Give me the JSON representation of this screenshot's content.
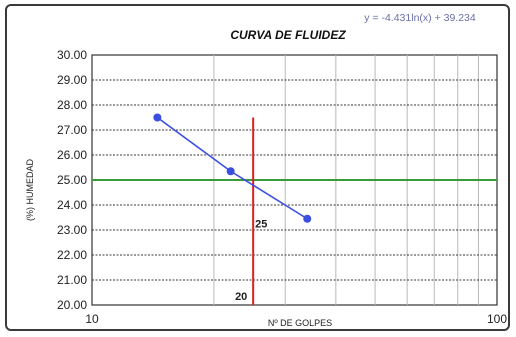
{
  "chart_data": {
    "type": "scatter",
    "title": "CURVA DE FLUIDEZ",
    "equation": "y = -4.431ln(x) + 39.234",
    "xlabel": "Nº DE GOLPES",
    "ylabel": "(%) HUMEDAD",
    "x_scale": "log",
    "xlim": [
      10,
      100
    ],
    "ylim": [
      20,
      30
    ],
    "x_tick_labels": [
      "10",
      "100"
    ],
    "x_minor_ticks": [
      20,
      30,
      40,
      50,
      60,
      70,
      80,
      90
    ],
    "y_ticks": [
      20.0,
      21.0,
      22.0,
      23.0,
      24.0,
      25.0,
      26.0,
      27.0,
      28.0,
      29.0,
      30.0
    ],
    "y_tick_labels": [
      "20.00",
      "21.00",
      "22.00",
      "23.00",
      "24.00",
      "25.00",
      "26.00",
      "27.00",
      "28.00",
      "29.00",
      "30.00"
    ],
    "grid": true,
    "series": [
      {
        "color": "#3a4fe0",
        "points": [
          {
            "x": 14.5,
            "y": 27.5
          },
          {
            "x": 22.0,
            "y": 25.35
          },
          {
            "x": 34.0,
            "y": 23.45
          }
        ]
      }
    ],
    "reference_lines": [
      {
        "orientation": "horizontal",
        "value": 25.0,
        "color": "#3a9a3a"
      },
      {
        "orientation": "vertical",
        "value": 25.0,
        "color": "#e02020",
        "y_range": [
          20,
          27.5
        ]
      }
    ],
    "annotations": [
      {
        "text": "25",
        "x": 25.0,
        "y": 23.1
      },
      {
        "text": "20",
        "x": 22.3,
        "y": 20.2
      }
    ]
  }
}
